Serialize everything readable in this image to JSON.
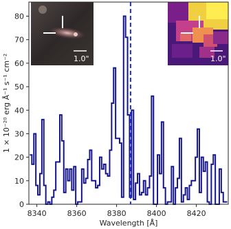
{
  "chart_data": {
    "type": "line",
    "style": "step",
    "xlabel": "Wavelength [Å]",
    "ylabel": "1 × 10⁻²⁰ erg Å⁻¹ s⁻¹ cm⁻²",
    "xlim": [
      8336,
      8436
    ],
    "ylim": [
      0,
      86
    ],
    "x_ticks": [
      8340,
      8360,
      8380,
      8400,
      8420
    ],
    "y_ticks": [
      0,
      10,
      20,
      30,
      40,
      50,
      60,
      70,
      80
    ],
    "line_color": "#14148c",
    "marker_line": {
      "x": 8387,
      "color": "#1f2fd6",
      "style": "dashed"
    },
    "x": [
      8337,
      8338,
      8339,
      8340,
      8341,
      8342,
      8343,
      8344,
      8345,
      8346,
      8347,
      8348,
      8349,
      8350,
      8351,
      8352,
      8353,
      8354,
      8355,
      8356,
      8357,
      8358,
      8359,
      8360,
      8361,
      8362,
      8363,
      8364,
      8365,
      8366,
      8367,
      8368,
      8369,
      8370,
      8371,
      8372,
      8373,
      8374,
      8375,
      8376,
      8377,
      8378,
      8379,
      8380,
      8381,
      8382,
      8383,
      8384,
      8385,
      8386,
      8387,
      8388,
      8389,
      8390,
      8391,
      8392,
      8393,
      8394,
      8395,
      8396,
      8397,
      8398,
      8399,
      8400,
      8401,
      8402,
      8403,
      8404,
      8405,
      8406,
      8407,
      8408,
      8409,
      8410,
      8411,
      8412,
      8413,
      8414,
      8415,
      8416,
      8417,
      8418,
      8419,
      8420,
      8421,
      8422,
      8423,
      8424,
      8425,
      8426,
      8427,
      8428,
      8429,
      8430,
      8431,
      8432,
      8433,
      8434,
      8435
    ],
    "y": [
      21,
      17,
      30,
      8,
      4,
      13,
      36,
      8,
      0,
      1,
      0,
      3,
      6,
      18,
      18,
      38,
      27,
      5,
      15,
      10,
      15,
      6,
      16,
      0,
      1,
      1,
      15,
      9,
      11,
      19,
      23,
      10,
      10,
      7,
      8,
      20,
      15,
      17,
      13,
      12,
      23,
      43,
      58,
      28,
      28,
      26,
      3,
      80,
      71,
      38,
      3,
      40,
      2,
      9,
      13,
      4,
      5,
      10,
      4,
      7,
      12,
      46,
      0,
      0,
      21,
      13,
      35,
      7,
      0,
      1,
      1,
      16,
      0,
      7,
      11,
      28,
      1,
      4,
      7,
      2,
      8,
      10,
      10,
      20,
      32,
      5,
      20,
      14,
      18,
      1,
      0,
      17,
      21,
      0,
      0,
      15,
      5,
      1,
      1
    ]
  },
  "insets": [
    {
      "scale_label": "1.0\"",
      "palette": [
        "#2a2323",
        "#5a4e4a",
        "#9a8a80",
        "#e0b0b0"
      ]
    },
    {
      "scale_label": "1.0\"",
      "palette": [
        "#3a0f6a",
        "#7a1f8a",
        "#c0408a",
        "#f08050",
        "#ffe040"
      ]
    }
  ],
  "colors": {
    "axis": "#262626",
    "background": "#ffffff"
  }
}
